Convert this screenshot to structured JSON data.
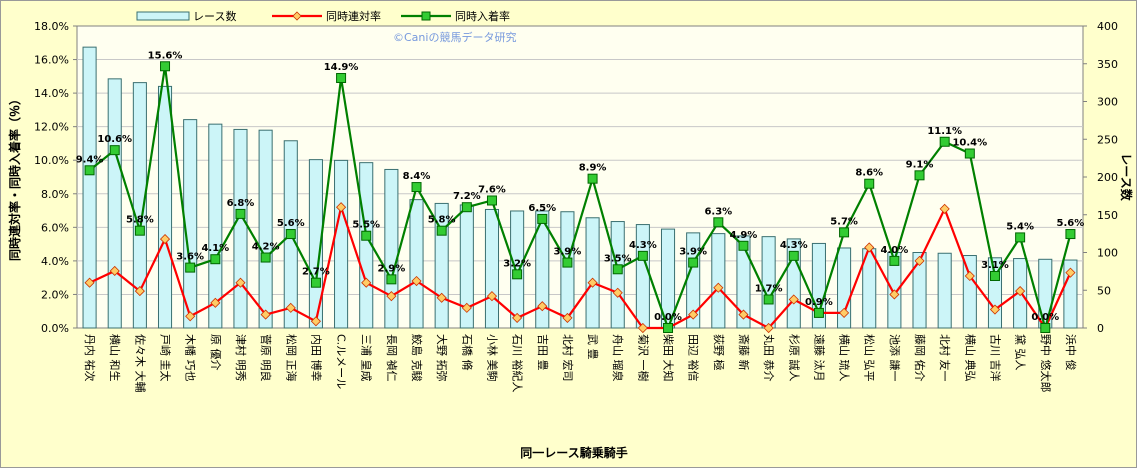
{
  "chart_data": {
    "type": "bar+line",
    "watermark": "©Caniの競馬データ研究",
    "xlabel": "同一レース騎乗騎手",
    "ylabel_left": "同時連対率・同時入着率（％）",
    "ylabel_right": "レース数",
    "ylim_left": [
      0,
      18
    ],
    "ylim_right": [
      0,
      400
    ],
    "yticks_left": [
      "0.0%",
      "2.0%",
      "4.0%",
      "6.0%",
      "8.0%",
      "10.0%",
      "12.0%",
      "14.0%",
      "16.0%",
      "18.0%"
    ],
    "yticks_right": [
      "0",
      "50",
      "100",
      "150",
      "200",
      "250",
      "300",
      "350",
      "400"
    ],
    "legend": [
      "レース数",
      "同時連対率",
      "同時入着率"
    ],
    "colors": {
      "bar_fill": "#ccf5f8",
      "bar_edge": "#3a6f70",
      "rentai": "#ff0000",
      "nyuchaku": "#008000",
      "marker_rentai": "#ffcc66",
      "marker_nyuchaku": "#33cc33"
    },
    "categories": [
      "丹内 祐次",
      "横山 和生",
      "佐々木 大輔",
      "戸崎 圭太",
      "木幡 巧也",
      "原 優介",
      "津村 明秀",
      "菅原 明良",
      "松岡 正海",
      "内田 博幸",
      "C.ルメール",
      "三浦 皇成",
      "長岡 禎仁",
      "鮫島 克駿",
      "大野 拓弥",
      "石橋 脩",
      "小林 美駒",
      "石川 裕紀人",
      "吉田 豊",
      "北村 宏司",
      "武 豊",
      "舟山 瑠泉",
      "菊沢 一樹",
      "柴田 大知",
      "田辺 裕信",
      "荻野 極",
      "斎藤 新",
      "丸田 恭介",
      "杉原 誠人",
      "遠藤 汰月",
      "横山 琉人",
      "松山 弘平",
      "池添 謙一",
      "藤岡 佑介",
      "北村 友一",
      "横山 典弘",
      "古川 吉洋",
      "黛 弘人",
      "野中 悠太郎",
      "浜中 俊"
    ],
    "series": [
      {
        "name": "レース数",
        "type": "bar",
        "values": [
          372,
          330,
          325,
          320,
          276,
          270,
          263,
          262,
          248,
          223,
          222,
          219,
          210,
          170,
          165,
          163,
          157,
          155,
          155,
          154,
          146,
          141,
          137,
          131,
          126,
          125,
          122,
          121,
          118,
          112,
          106,
          105,
          100,
          100,
          99,
          96,
          93,
          92,
          91,
          90
        ]
      },
      {
        "name": "同時連対率",
        "type": "line",
        "values": [
          2.7,
          3.4,
          2.2,
          5.3,
          0.7,
          1.5,
          2.7,
          0.8,
          1.2,
          0.4,
          7.2,
          2.7,
          1.9,
          2.8,
          1.8,
          1.2,
          1.9,
          0.6,
          1.3,
          0.6,
          2.7,
          2.1,
          0,
          0,
          0.8,
          2.4,
          0.8,
          0,
          1.7,
          0.9,
          0.9,
          4.8,
          2.0,
          4.0,
          7.1,
          3.1,
          1.1,
          2.2,
          0,
          3.3
        ]
      },
      {
        "name": "同時入着率",
        "type": "line",
        "values": [
          9.4,
          10.6,
          5.8,
          15.6,
          3.6,
          4.1,
          6.8,
          4.2,
          5.6,
          2.7,
          14.9,
          5.5,
          2.9,
          8.4,
          5.8,
          7.2,
          7.6,
          3.2,
          6.5,
          3.9,
          8.9,
          3.5,
          4.3,
          0.0,
          3.9,
          6.3,
          4.9,
          1.7,
          4.3,
          0.9,
          5.7,
          8.6,
          4.0,
          9.1,
          11.1,
          10.4,
          3.1,
          5.4,
          0.0,
          5.6
        ]
      }
    ],
    "data_labels": [
      "9.4%",
      "10.6%",
      "5.8%",
      "15.6%",
      "3.6%",
      "4.1%",
      "6.8%",
      "4.2%",
      "5.6%",
      "2.7%",
      "14.9%",
      "5.5%",
      "2.9%",
      "8.4%",
      "5.8%",
      "7.2%",
      "7.6%",
      "3.2%",
      "6.5%",
      "3.9%",
      "8.9%",
      "3.5%",
      "4.3%",
      "0.0%",
      "3.9%",
      "6.3%",
      "4.9%",
      "1.7%",
      "4.3%",
      "0.9%",
      "5.7%",
      "8.6%",
      "4.0%",
      "9.1%",
      "11.1%",
      "10.4%",
      "3.1%",
      "5.4%",
      "0.0%",
      "5.6%"
    ]
  }
}
